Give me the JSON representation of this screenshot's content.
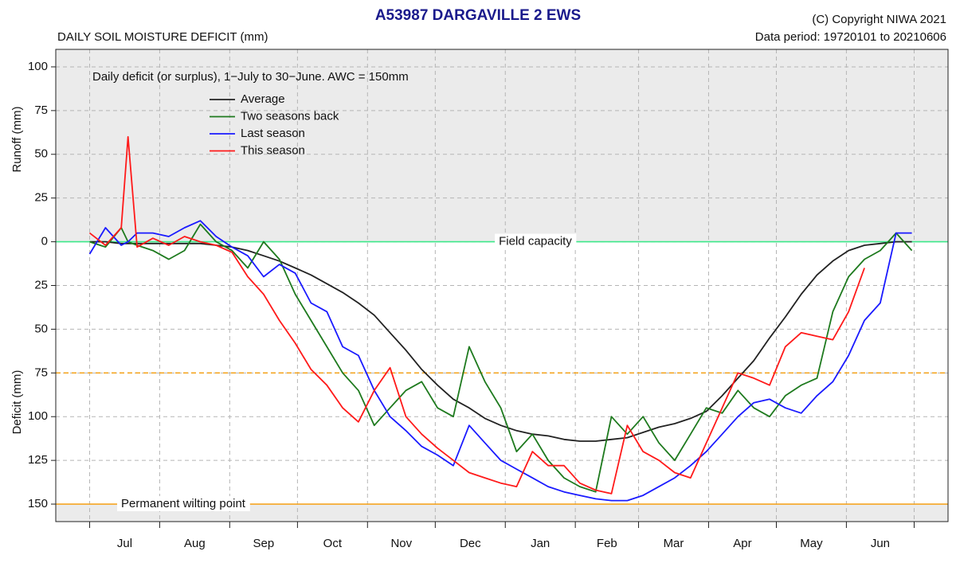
{
  "chart_data": {
    "type": "line",
    "title": "A53987  DARGAVILLE 2 EWS",
    "subtitle": "DAILY SOIL MOISTURE DEFICIT (mm)",
    "copyright": "(C) Copyright NIWA  2021",
    "data_period": "Data period:  19720101  to  20210606",
    "annotation": "Daily deficit (or surplus), 1−July to 30−June.  AWC = 150mm",
    "y_label_top": "Runoff (mm)",
    "y_label_bottom": "Deficit (mm)",
    "categories": [
      "Jul",
      "Aug",
      "Sep",
      "Oct",
      "Nov",
      "Dec",
      "Jan",
      "Feb",
      "Mar",
      "Apr",
      "May",
      "Jun"
    ],
    "xticks": [
      0,
      31,
      62,
      92,
      123,
      153,
      184,
      215,
      243,
      274,
      304,
      335,
      365
    ],
    "xlim": [
      -15,
      380
    ],
    "ylim": [
      -160,
      110
    ],
    "yticks": [
      100,
      75,
      50,
      25,
      0,
      {
        "value": -25,
        "label": "25"
      },
      {
        "value": -50,
        "label": "50"
      },
      {
        "value": -75,
        "label": "75"
      },
      {
        "value": -100,
        "label": "100"
      },
      {
        "value": -125,
        "label": "125"
      },
      {
        "value": -150,
        "label": "150"
      }
    ],
    "grid": true,
    "reference_lines": [
      {
        "value": 0,
        "label": "Field capacity",
        "color": "#3ce88a",
        "style": "solid"
      },
      {
        "value": -75,
        "color": "#f5a623",
        "style": "dashed"
      },
      {
        "value": -150,
        "label": "Permanent wilting point",
        "color": "#f5a623",
        "style": "solid"
      }
    ],
    "x": [
      0,
      7,
      14,
      17,
      21,
      28,
      35,
      42,
      49,
      56,
      63,
      70,
      77,
      84,
      91,
      98,
      105,
      112,
      119,
      126,
      133,
      140,
      147,
      154,
      161,
      168,
      175,
      182,
      189,
      196,
      203,
      210,
      217,
      224,
      231,
      238,
      245,
      252,
      259,
      266,
      273,
      280,
      287,
      294,
      301,
      308,
      315,
      322,
      329,
      336,
      343,
      350,
      357,
      364
    ],
    "series": [
      {
        "name": "Average",
        "color": "#222222",
        "values": [
          0,
          0,
          -1,
          -1,
          -1,
          -1,
          -1,
          -1,
          -1,
          -2,
          -3,
          -5,
          -8,
          -11,
          -15,
          -19,
          -24,
          -29,
          -35,
          -42,
          -52,
          -62,
          -73,
          -82,
          -90,
          -95,
          -101,
          -105,
          -108,
          -110,
          -111,
          -113,
          -114,
          -114,
          -113,
          -112,
          -109,
          -106,
          -104,
          -101,
          -97,
          -88,
          -78,
          -68,
          -55,
          -43,
          -30,
          -19,
          -11,
          -5,
          -2,
          -1,
          0,
          0
        ]
      },
      {
        "name": "Two seasons back",
        "color": "#1e7a1e",
        "values": [
          0,
          -3,
          8,
          0,
          -2,
          -5,
          -10,
          -5,
          10,
          0,
          -5,
          -15,
          0,
          -10,
          -30,
          -45,
          -60,
          -75,
          -85,
          -105,
          -95,
          -85,
          -80,
          -95,
          -100,
          -60,
          -80,
          -95,
          -120,
          -110,
          -125,
          -135,
          -140,
          -143,
          -100,
          -110,
          -100,
          -115,
          -125,
          -110,
          -95,
          -98,
          -85,
          -95,
          -100,
          -88,
          -82,
          -78,
          -40,
          -20,
          -10,
          -5,
          5,
          -5
        ]
      },
      {
        "name": "Last season",
        "color": "#1a1aff",
        "values": [
          -7,
          8,
          -2,
          0,
          5,
          5,
          3,
          8,
          12,
          3,
          -3,
          -8,
          -20,
          -13,
          -18,
          -35,
          -40,
          -60,
          -65,
          -85,
          -100,
          -108,
          -117,
          -122,
          -128,
          -105,
          -115,
          -125,
          -130,
          -135,
          -140,
          -143,
          -145,
          -147,
          -148,
          -148,
          -145,
          -140,
          -135,
          -128,
          -120,
          -110,
          -100,
          -92,
          -90,
          -95,
          -98,
          -88,
          -80,
          -65,
          -45,
          -35,
          5,
          5
        ]
      },
      {
        "name": "This season",
        "color": "#ff1a1a",
        "values": [
          5,
          -2,
          8,
          60,
          -3,
          2,
          -2,
          3,
          0,
          -2,
          -6,
          -20,
          -30,
          -45,
          -58,
          -73,
          -82,
          -95,
          -103,
          -85,
          -72,
          -100,
          -110,
          -118,
          -125,
          -132,
          -135,
          -138,
          -140,
          -120,
          -128,
          -128,
          -138,
          -142,
          -144,
          -105,
          -120,
          -125,
          -132,
          -135,
          -115,
          -95,
          -75,
          -78,
          -82,
          -60,
          -52,
          -54,
          -56,
          -40,
          -15,
          null,
          null,
          null
        ]
      }
    ]
  }
}
